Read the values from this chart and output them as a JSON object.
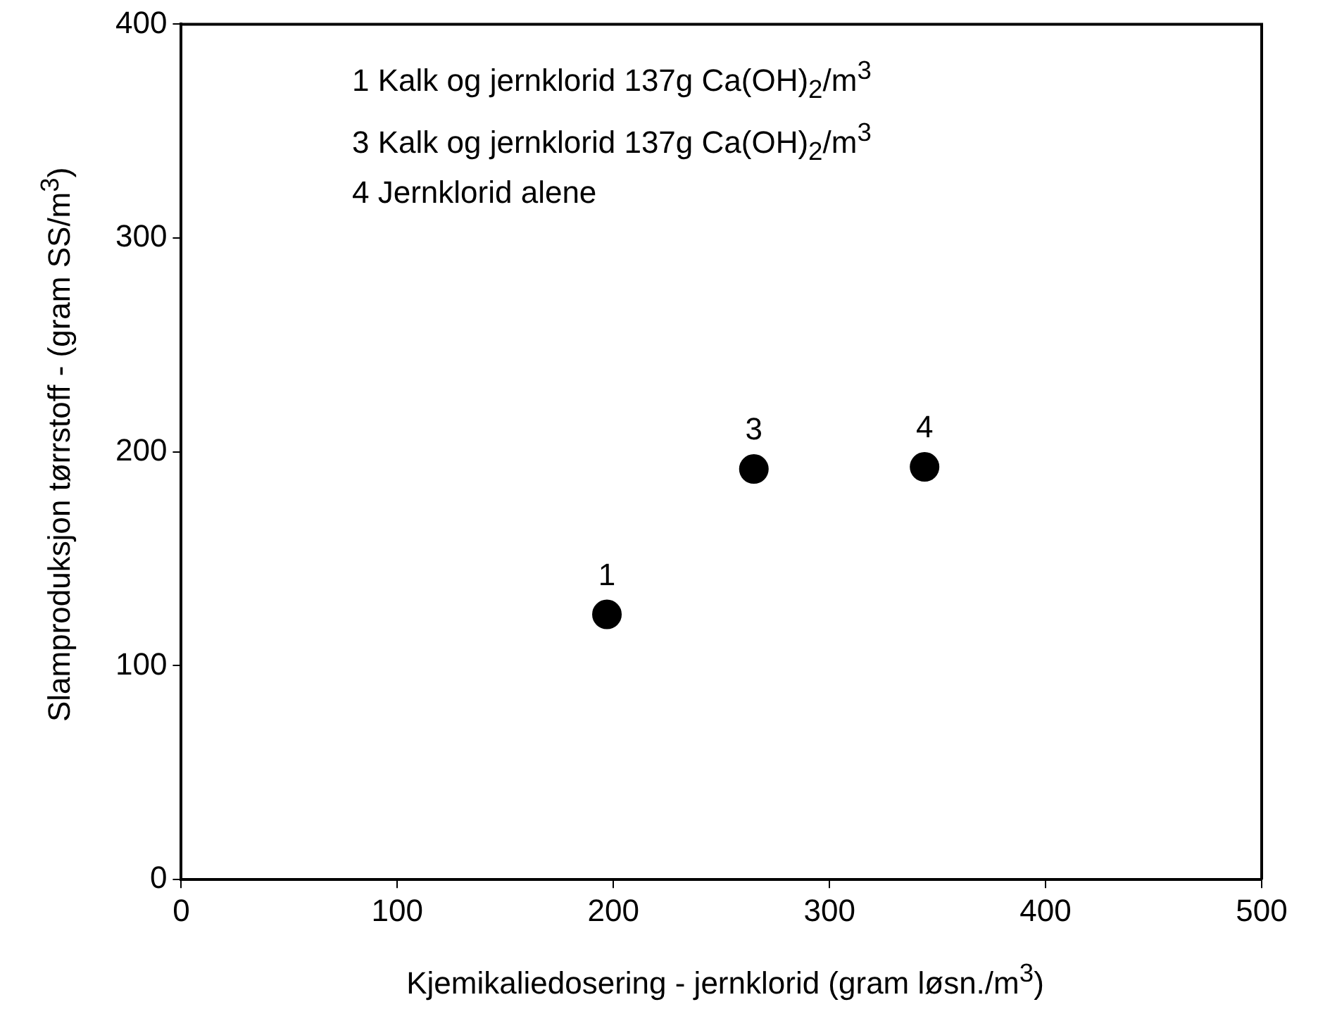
{
  "chart_data": {
    "type": "scatter",
    "xlabel": "Kjemikaliedosering - jernklorid (gram løsn./m$^{3}$)",
    "ylabel": "Slamproduksjon tørrstoff - (gram SS/m$^{3}$)",
    "x": [
      197,
      265,
      344
    ],
    "values": [
      124,
      192,
      193
    ],
    "color": "#000000",
    "marker": "circle",
    "xlim": [
      0,
      500
    ],
    "xticks": [
      0,
      100,
      200,
      300,
      400,
      500
    ],
    "ylim": [
      0,
      400
    ],
    "yticks": [
      0,
      100,
      200,
      300,
      400
    ],
    "grid": false,
    "legend": false,
    "annotations": [
      "1  Kalk og jernklorid 137g Ca(OH)$_{2}$/m$^{3}$",
      "3  Kalk og jernklorid 137g Ca(OH)$_{2}$/m$^{3}$",
      "4  Jernklorid alene",
      {
        "text": "1",
        "x": 197,
        "y": 124
      },
      {
        "text": "3",
        "x": 265,
        "y": 192
      },
      {
        "text": "4",
        "x": 344,
        "y": 193
      }
    ]
  }
}
